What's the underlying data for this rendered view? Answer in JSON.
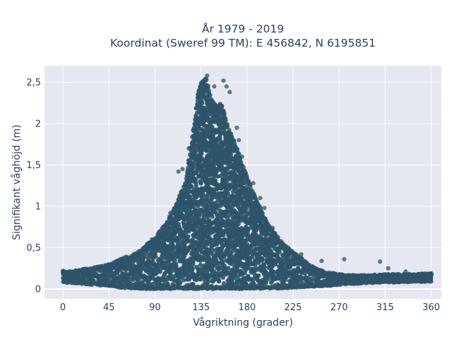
{
  "chart_data": {
    "type": "scatter",
    "title_line1": "År 1979 - 2019",
    "title_line2": "Koordinat (Sweref 99 TM): E 456842, N 6195851",
    "xlabel": "Vågriktning (grader)",
    "ylabel": "Signifikant våghöjd (m)",
    "xlim": [
      -18,
      370
    ],
    "ylim": [
      -0.12,
      2.7
    ],
    "x_ticks": [
      0,
      45,
      90,
      135,
      180,
      225,
      270,
      315,
      360
    ],
    "x_tick_labels": [
      "0",
      "45",
      "90",
      "135",
      "180",
      "225",
      "270",
      "315",
      "360"
    ],
    "y_ticks": [
      0,
      0.5,
      1,
      1.5,
      2,
      2.5
    ],
    "y_tick_labels": [
      "0",
      "0,5",
      "1",
      "1,5",
      "2",
      "2,5"
    ],
    "grid": true,
    "colors": {
      "marker": "#2e5468",
      "plot_bg": "#e5e8f0",
      "grid": "#ffffff",
      "text": "#2a3f5f"
    },
    "envelope_upper": [
      [
        0,
        0.22
      ],
      [
        10,
        0.22
      ],
      [
        20,
        0.24
      ],
      [
        30,
        0.26
      ],
      [
        40,
        0.28
      ],
      [
        50,
        0.33
      ],
      [
        60,
        0.38
      ],
      [
        70,
        0.42
      ],
      [
        80,
        0.52
      ],
      [
        90,
        0.62
      ],
      [
        100,
        0.78
      ],
      [
        110,
        1.0
      ],
      [
        120,
        1.3
      ],
      [
        128,
        1.95
      ],
      [
        132,
        2.35
      ],
      [
        135,
        2.5
      ],
      [
        140,
        2.55
      ],
      [
        145,
        2.3
      ],
      [
        150,
        2.2
      ],
      [
        155,
        2.25
      ],
      [
        160,
        2.0
      ],
      [
        165,
        1.85
      ],
      [
        170,
        1.7
      ],
      [
        180,
        1.35
      ],
      [
        190,
        1.05
      ],
      [
        200,
        0.8
      ],
      [
        210,
        0.62
      ],
      [
        220,
        0.5
      ],
      [
        230,
        0.4
      ],
      [
        240,
        0.3
      ],
      [
        250,
        0.24
      ],
      [
        260,
        0.2
      ],
      [
        270,
        0.18
      ],
      [
        280,
        0.17
      ],
      [
        300,
        0.17
      ],
      [
        320,
        0.18
      ],
      [
        340,
        0.18
      ],
      [
        360,
        0.19
      ]
    ],
    "envelope_lower": [
      [
        0,
        0.08
      ],
      [
        20,
        0.06
      ],
      [
        40,
        0.04
      ],
      [
        60,
        0.01
      ],
      [
        80,
        0.0
      ],
      [
        100,
        0.0
      ],
      [
        140,
        0.0
      ],
      [
        180,
        0.0
      ],
      [
        220,
        0.01
      ],
      [
        250,
        0.03
      ],
      [
        280,
        0.06
      ],
      [
        320,
        0.08
      ],
      [
        360,
        0.09
      ]
    ],
    "outliers": [
      [
        157,
        2.52
      ],
      [
        160,
        2.45
      ],
      [
        163,
        2.38
      ],
      [
        148,
        2.45
      ],
      [
        141,
        2.58
      ],
      [
        170,
        1.95
      ],
      [
        172,
        1.8
      ],
      [
        175,
        1.6
      ],
      [
        186,
        1.28
      ],
      [
        193,
        1.1
      ],
      [
        197,
        0.98
      ],
      [
        205,
        0.74
      ],
      [
        213,
        0.58
      ],
      [
        215,
        0.5
      ],
      [
        222,
        0.45
      ],
      [
        233,
        0.42
      ],
      [
        253,
        0.34
      ],
      [
        275,
        0.36
      ],
      [
        310,
        0.33
      ],
      [
        318,
        0.25
      ],
      [
        335,
        0.21
      ],
      [
        58,
        0.37
      ],
      [
        62,
        0.39
      ],
      [
        84,
        0.55
      ],
      [
        87,
        0.6
      ],
      [
        100,
        0.75
      ],
      [
        105,
        0.92
      ],
      [
        113,
        1.42
      ],
      [
        117,
        1.45
      ],
      [
        123,
        1.7
      ]
    ]
  }
}
